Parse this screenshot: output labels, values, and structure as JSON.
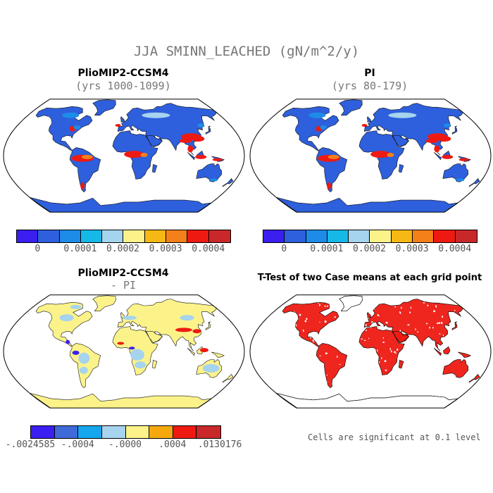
{
  "title": "JJA SMINN_LEACHED (gN/m^2/y)",
  "panels": {
    "top_left": {
      "title": "PlioMIP2-CCSM4",
      "subtitle": "(yrs 1000-1099)"
    },
    "top_right": {
      "title": "PI",
      "subtitle": "(yrs 80-179)"
    },
    "bottom_left": {
      "title": "PlioMIP2-CCSM4",
      "subtitle": "- PI"
    },
    "bottom_right": {
      "title": "T-Test of two Case means at each grid point",
      "note": "Cells are significant at 0.1 level"
    }
  },
  "colorbars": {
    "absolute": {
      "colors": [
        "#3a1ff0",
        "#2e5fdc",
        "#1c8ce8",
        "#16b8e8",
        "#a6d3ee",
        "#fbf38a",
        "#f6b814",
        "#f4801a",
        "#ee1a12",
        "#c8282a"
      ],
      "labels": [
        "0",
        "0.0001",
        "0.0002",
        "0.0003",
        "0.0004"
      ]
    },
    "difference": {
      "colors": [
        "#3a1ff0",
        "#3f6ad8",
        "#16a6ee",
        "#a6d3ee",
        "#fbf38a",
        "#f6a80f",
        "#ee1a12",
        "#c8282a"
      ],
      "labels": [
        "-.0024585",
        "-.0004",
        "-.0000",
        ".0004",
        ".0130176"
      ]
    }
  },
  "map_colors": {
    "ocean": "#ffffff",
    "abs_land": "#2e5fdc",
    "abs_mid": "#1c8ce8",
    "abs_low": "#a6d3ee",
    "abs_warm": "#f4801a",
    "abs_high": "#ee1a12",
    "diff_land": "#fbf38a",
    "diff_neg": "#a6d3ee",
    "diff_strong_neg": "#3a1ff0",
    "diff_pos": "#ee1a12",
    "significant": "#ee1a12"
  }
}
